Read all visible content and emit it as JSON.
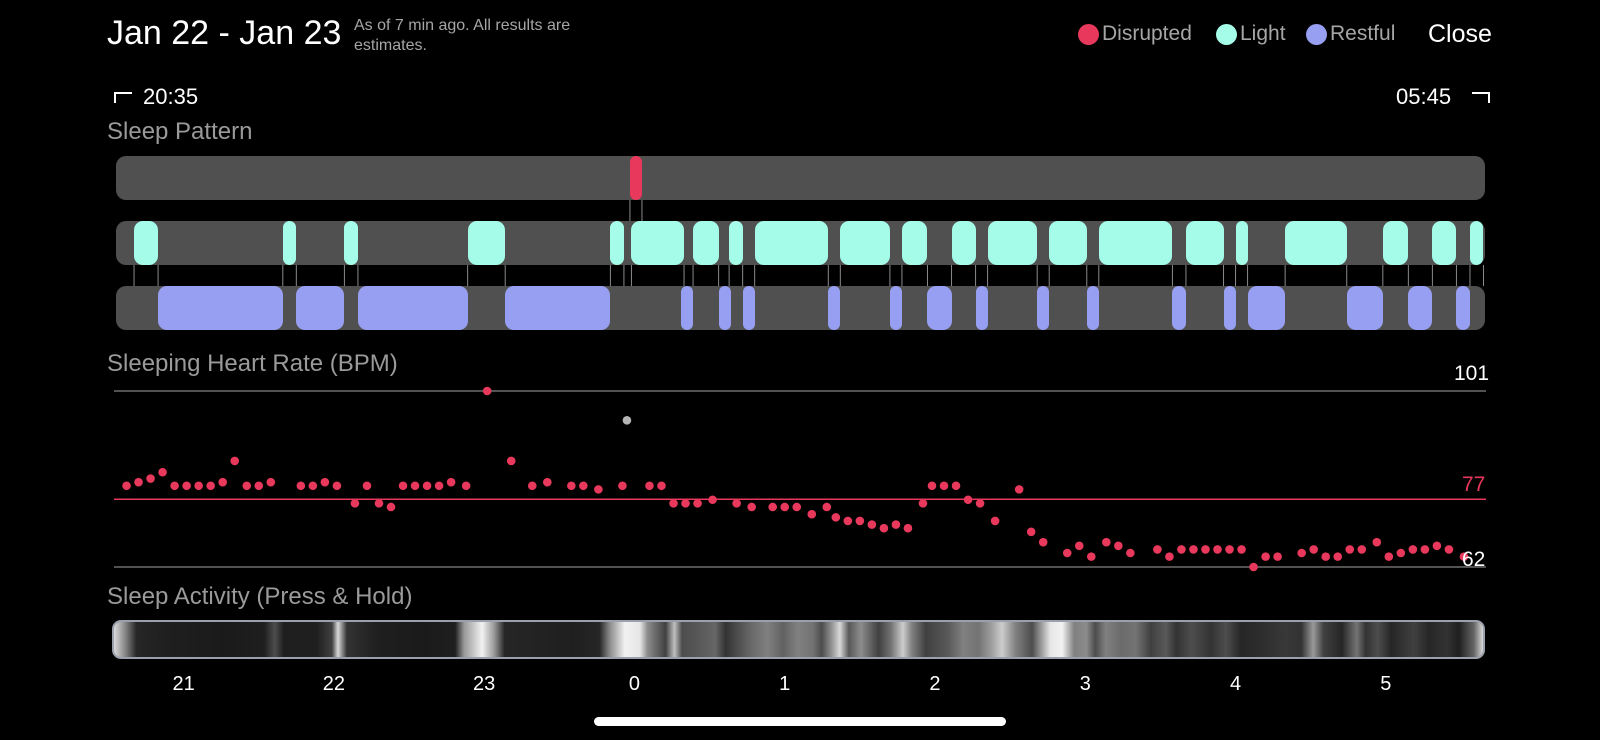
{
  "header": {
    "title": "Jan 22 - Jan 23",
    "subtitle": "As of 7 min ago. All results are estimates.",
    "close_label": "Close"
  },
  "legend": [
    {
      "label": "Disrupted",
      "color": "#e8385c"
    },
    {
      "label": "Light",
      "color": "#a5fde9"
    },
    {
      "label": "Restful",
      "color": "#979ff2"
    }
  ],
  "range": {
    "start": "20:35",
    "end": "05:45"
  },
  "sleep_pattern": {
    "title": "Sleep Pattern",
    "disrupted": [
      [
        23.97,
        24.05
      ]
    ],
    "light": [
      [
        20.67,
        20.83
      ],
      [
        21.66,
        21.75
      ],
      [
        22.07,
        22.16
      ],
      [
        22.89,
        23.14
      ],
      [
        23.84,
        23.93
      ],
      [
        23.98,
        24.33
      ],
      [
        24.39,
        24.56
      ],
      [
        24.63,
        24.72
      ],
      [
        24.8,
        25.29
      ],
      [
        25.37,
        25.7
      ],
      [
        25.78,
        25.95
      ],
      [
        26.11,
        26.27
      ],
      [
        26.35,
        26.68
      ],
      [
        26.76,
        27.01
      ],
      [
        27.09,
        27.58
      ],
      [
        27.67,
        27.92
      ],
      [
        28.0,
        28.08
      ],
      [
        28.33,
        28.74
      ],
      [
        28.98,
        29.15
      ],
      [
        29.31,
        29.47
      ],
      [
        29.56,
        29.65
      ]
    ],
    "restful": [
      [
        20.83,
        21.66
      ],
      [
        21.75,
        22.07
      ],
      [
        22.16,
        22.89
      ],
      [
        23.14,
        23.84
      ],
      [
        24.31,
        24.39
      ],
      [
        24.56,
        24.64
      ],
      [
        24.72,
        24.8
      ],
      [
        25.29,
        25.37
      ],
      [
        25.7,
        25.78
      ],
      [
        25.95,
        26.11
      ],
      [
        26.27,
        26.35
      ],
      [
        26.68,
        26.76
      ],
      [
        27.01,
        27.09
      ],
      [
        27.58,
        27.67
      ],
      [
        27.92,
        28.0
      ],
      [
        28.08,
        28.33
      ],
      [
        28.74,
        28.98
      ],
      [
        29.15,
        29.31
      ],
      [
        29.47,
        29.56
      ]
    ]
  },
  "heart_rate": {
    "title": "Sleeping Heart Rate (BPM)",
    "max_label": "101",
    "avg_label": "77",
    "min_label": "62",
    "max": 101,
    "avg": 77,
    "min": 62,
    "points": [
      [
        20.62,
        80
      ],
      [
        20.7,
        80.8
      ],
      [
        20.78,
        81.6
      ],
      [
        20.86,
        83
      ],
      [
        20.94,
        80
      ],
      [
        21.02,
        80
      ],
      [
        21.1,
        80
      ],
      [
        21.18,
        80
      ],
      [
        21.26,
        80.8
      ],
      [
        21.34,
        85.5
      ],
      [
        21.42,
        80
      ],
      [
        21.5,
        80
      ],
      [
        21.58,
        80.8
      ],
      [
        21.78,
        80
      ],
      [
        21.86,
        80
      ],
      [
        21.94,
        80.8
      ],
      [
        22.02,
        80
      ],
      [
        22.14,
        76.1
      ],
      [
        22.22,
        80
      ],
      [
        22.3,
        76.1
      ],
      [
        22.38,
        75.3
      ],
      [
        22.46,
        80
      ],
      [
        22.54,
        80
      ],
      [
        22.62,
        80
      ],
      [
        22.7,
        80
      ],
      [
        22.78,
        80.8
      ],
      [
        22.88,
        80
      ],
      [
        23.02,
        101
      ],
      [
        23.18,
        85.5
      ],
      [
        23.32,
        80
      ],
      [
        23.42,
        80.8
      ],
      [
        23.58,
        80
      ],
      [
        23.66,
        80
      ],
      [
        23.76,
        79.2
      ],
      [
        23.92,
        80
      ],
      [
        24.1,
        80
      ],
      [
        24.18,
        80
      ],
      [
        24.26,
        76.1
      ],
      [
        24.34,
        76.1
      ],
      [
        24.42,
        76.1
      ],
      [
        24.52,
        76.9
      ],
      [
        24.68,
        76.1
      ],
      [
        24.78,
        75.3
      ],
      [
        24.92,
        75.3
      ],
      [
        25.0,
        75.3
      ],
      [
        25.08,
        75.3
      ],
      [
        25.18,
        73.7
      ],
      [
        25.28,
        75.3
      ],
      [
        25.34,
        73
      ],
      [
        25.42,
        72.2
      ],
      [
        25.5,
        72.2
      ],
      [
        25.58,
        71.4
      ],
      [
        25.66,
        70.6
      ],
      [
        25.74,
        71.4
      ],
      [
        25.82,
        70.6
      ],
      [
        25.92,
        76.1
      ],
      [
        25.98,
        80
      ],
      [
        26.06,
        80
      ],
      [
        26.14,
        80
      ],
      [
        26.22,
        76.9
      ],
      [
        26.3,
        76.1
      ],
      [
        26.4,
        72.2
      ],
      [
        26.56,
        79.2
      ],
      [
        26.64,
        69.8
      ],
      [
        26.72,
        67.5
      ],
      [
        26.88,
        65.1
      ],
      [
        26.96,
        66.7
      ],
      [
        27.04,
        64.3
      ],
      [
        27.14,
        67.5
      ],
      [
        27.22,
        66.7
      ],
      [
        27.3,
        65.1
      ],
      [
        27.48,
        65.9
      ],
      [
        27.56,
        64.3
      ],
      [
        27.64,
        65.9
      ],
      [
        27.72,
        65.9
      ],
      [
        27.8,
        65.9
      ],
      [
        27.88,
        65.9
      ],
      [
        27.96,
        65.9
      ],
      [
        28.04,
        65.9
      ],
      [
        28.12,
        62
      ],
      [
        28.2,
        64.3
      ],
      [
        28.28,
        64.3
      ],
      [
        28.44,
        65.1
      ],
      [
        28.52,
        65.9
      ],
      [
        28.6,
        64.3
      ],
      [
        28.68,
        64.3
      ],
      [
        28.76,
        65.9
      ],
      [
        28.84,
        65.9
      ],
      [
        28.94,
        67.5
      ],
      [
        29.02,
        64.3
      ],
      [
        29.1,
        65.1
      ],
      [
        29.18,
        65.9
      ],
      [
        29.26,
        65.9
      ],
      [
        29.34,
        66.7
      ],
      [
        29.42,
        65.9
      ],
      [
        29.52,
        64.3
      ]
    ],
    "other_points": [
      [
        23.95,
        94.5
      ]
    ],
    "point_color": "#e8385c",
    "other_color": "#b4b4b4"
  },
  "activity": {
    "title": "Sleep Activity (Press & Hold)",
    "brightness": [
      [
        20.55,
        0.85
      ],
      [
        20.62,
        0.55
      ],
      [
        20.7,
        0.15
      ],
      [
        20.9,
        0.12
      ],
      [
        21.3,
        0.1
      ],
      [
        21.55,
        0.12
      ],
      [
        21.62,
        0.3
      ],
      [
        21.68,
        0.12
      ],
      [
        21.9,
        0.12
      ],
      [
        22.0,
        0.25
      ],
      [
        22.04,
        0.85
      ],
      [
        22.1,
        0.2
      ],
      [
        22.3,
        0.12
      ],
      [
        22.6,
        0.1
      ],
      [
        22.82,
        0.12
      ],
      [
        22.88,
        0.6
      ],
      [
        23.0,
        0.95
      ],
      [
        23.08,
        0.6
      ],
      [
        23.15,
        0.15
      ],
      [
        23.6,
        0.12
      ],
      [
        23.78,
        0.15
      ],
      [
        23.85,
        0.55
      ],
      [
        23.95,
        0.95
      ],
      [
        24.05,
        0.9
      ],
      [
        24.1,
        0.55
      ],
      [
        24.22,
        0.25
      ],
      [
        24.28,
        0.75
      ],
      [
        24.33,
        0.3
      ],
      [
        24.45,
        0.35
      ],
      [
        24.55,
        0.4
      ],
      [
        24.62,
        0.2
      ],
      [
        24.7,
        0.3
      ],
      [
        24.8,
        0.42
      ],
      [
        24.9,
        0.5
      ],
      [
        25.0,
        0.38
      ],
      [
        25.1,
        0.5
      ],
      [
        25.2,
        0.45
      ],
      [
        25.26,
        0.3
      ],
      [
        25.32,
        0.55
      ],
      [
        25.38,
        0.85
      ],
      [
        25.44,
        0.35
      ],
      [
        25.52,
        0.55
      ],
      [
        25.58,
        0.4
      ],
      [
        25.64,
        0.25
      ],
      [
        25.72,
        0.45
      ],
      [
        25.8,
        0.8
      ],
      [
        25.86,
        0.5
      ],
      [
        25.95,
        0.25
      ],
      [
        26.1,
        0.35
      ],
      [
        26.2,
        0.5
      ],
      [
        26.3,
        0.45
      ],
      [
        26.38,
        0.6
      ],
      [
        26.46,
        0.8
      ],
      [
        26.55,
        0.5
      ],
      [
        26.66,
        0.3
      ],
      [
        26.78,
        0.9
      ],
      [
        26.86,
        0.95
      ],
      [
        26.94,
        0.5
      ],
      [
        27.02,
        0.55
      ],
      [
        27.08,
        0.3
      ],
      [
        27.15,
        0.5
      ],
      [
        27.25,
        0.42
      ],
      [
        27.35,
        0.45
      ],
      [
        27.45,
        0.25
      ],
      [
        27.55,
        0.35
      ],
      [
        27.62,
        0.2
      ],
      [
        27.72,
        0.3
      ],
      [
        27.85,
        0.2
      ],
      [
        27.95,
        0.3
      ],
      [
        28.05,
        0.15
      ],
      [
        28.2,
        0.18
      ],
      [
        28.35,
        0.22
      ],
      [
        28.45,
        0.2
      ],
      [
        28.53,
        0.6
      ],
      [
        28.6,
        0.25
      ],
      [
        28.72,
        0.15
      ],
      [
        28.82,
        0.45
      ],
      [
        28.88,
        0.2
      ],
      [
        28.96,
        0.3
      ],
      [
        29.05,
        0.15
      ],
      [
        29.2,
        0.25
      ],
      [
        29.3,
        0.15
      ],
      [
        29.42,
        0.2
      ],
      [
        29.5,
        0.12
      ],
      [
        29.6,
        0.4
      ],
      [
        29.66,
        0.85
      ]
    ]
  },
  "x_axis": {
    "min": 20.55,
    "max": 29.66,
    "labels": [
      {
        "value": 21,
        "text": "21"
      },
      {
        "value": 22,
        "text": "22"
      },
      {
        "value": 23,
        "text": "23"
      },
      {
        "value": 24,
        "text": "0"
      },
      {
        "value": 25,
        "text": "1"
      },
      {
        "value": 26,
        "text": "2"
      },
      {
        "value": 27,
        "text": "3"
      },
      {
        "value": 28,
        "text": "4"
      },
      {
        "value": 29,
        "text": "5"
      }
    ]
  },
  "colors": {
    "disrupted": "#e8385c",
    "light": "#a5fde9",
    "restful": "#979ff2",
    "track": "#505050",
    "avg_line": "#e8385c",
    "ref_line": "#6e6e6e"
  }
}
